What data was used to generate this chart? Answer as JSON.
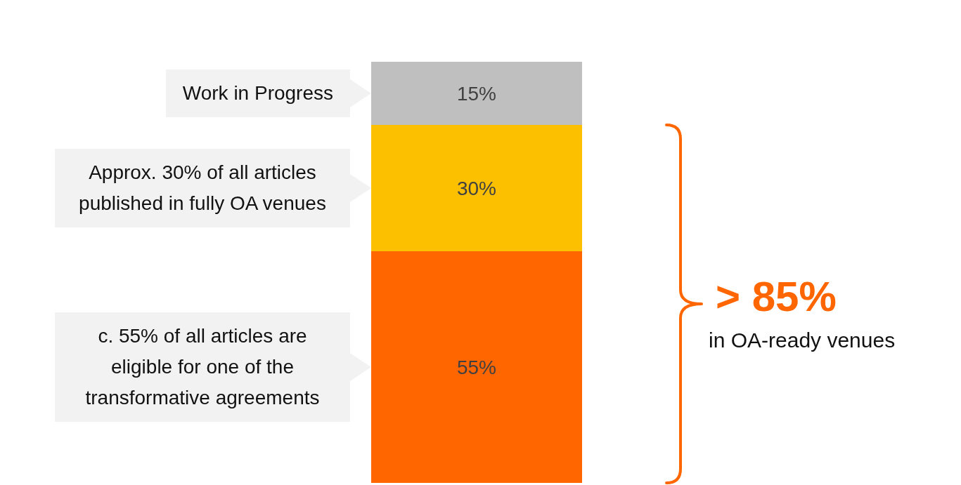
{
  "chart_data": {
    "type": "bar",
    "stacked": true,
    "categories": [
      null
    ],
    "series": [
      {
        "name": "c. 55% of all articles are eligible for one of the transformative agreements",
        "color": "#ff6600",
        "values": [
          55
        ],
        "value_labels": [
          "55%"
        ]
      },
      {
        "name": "Approx. 30% of all articles published in fully OA venues",
        "color": "#fdc000",
        "values": [
          30
        ],
        "value_labels": [
          "30%"
        ]
      },
      {
        "name": "Work in Progress",
        "color": "#bfbfbf",
        "values": [
          15
        ],
        "value_labels": [
          "15%"
        ]
      }
    ],
    "annotations": [
      "> 85%",
      "in OA-ready venues"
    ]
  }
}
